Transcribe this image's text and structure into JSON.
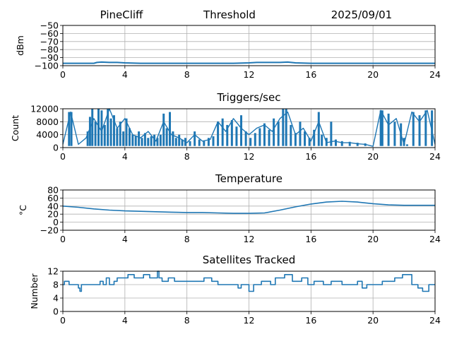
{
  "header": {
    "station": "PineCliff",
    "title": "Threshold",
    "date": "2025/09/01"
  },
  "colors": {
    "series": "#1f77b4",
    "grid": "#b0b0b0"
  },
  "chart_data": [
    {
      "type": "line",
      "title": "",
      "ylabel": "dBm",
      "xlim": [
        0,
        24
      ],
      "ylim": [
        -100,
        -50
      ],
      "xticks": [
        0,
        4,
        8,
        12,
        16,
        20,
        24
      ],
      "yticks": [
        -100,
        -90,
        -80,
        -70,
        -60,
        -50
      ],
      "ytick_labels": [
        "−100",
        "−90",
        "−80",
        "−70",
        "−60",
        "−50"
      ],
      "grid": true,
      "x": [
        0,
        1,
        2,
        2.2,
        2.5,
        3,
        3.5,
        4,
        5,
        6,
        7,
        8,
        9,
        10,
        11,
        12,
        12.5,
        13,
        14,
        14.5,
        15,
        16,
        17,
        18,
        19,
        20,
        21,
        22,
        23,
        24
      ],
      "y": [
        -97,
        -97,
        -97,
        -96,
        -95.5,
        -96,
        -96,
        -96.5,
        -97,
        -97,
        -97,
        -97,
        -97,
        -97,
        -97,
        -96.5,
        -96,
        -96,
        -96,
        -95.5,
        -96.5,
        -97,
        -97,
        -97,
        -97,
        -97,
        -97,
        -97,
        -97,
        -97
      ]
    },
    {
      "type": "line",
      "title": "Triggers/sec",
      "ylabel": "Count",
      "xlim": [
        0,
        24
      ],
      "ylim": [
        0,
        12000
      ],
      "xticks": [
        0,
        4,
        8,
        12,
        16,
        20,
        24
      ],
      "yticks": [
        0,
        4000,
        8000,
        12000
      ],
      "grid": true,
      "x": [
        0,
        0.5,
        1,
        1.5,
        2,
        2.5,
        3,
        3.5,
        4,
        4.5,
        5,
        5.5,
        6,
        6.5,
        7,
        7.5,
        8,
        8.5,
        9,
        9.5,
        10,
        10.5,
        11,
        11.5,
        12,
        12.5,
        13,
        13.5,
        14,
        14.5,
        15,
        15.5,
        16,
        16.5,
        17,
        17.5,
        18,
        18.5,
        19,
        19.5,
        20,
        20.5,
        21,
        21.5,
        22,
        22.5,
        23,
        23.5,
        24
      ],
      "y": [
        1000,
        11000,
        1000,
        3000,
        9000,
        5000,
        12000,
        6000,
        9000,
        4000,
        3000,
        5000,
        2000,
        8000,
        4000,
        3000,
        1500,
        4000,
        2000,
        2500,
        8000,
        5000,
        9000,
        6000,
        4000,
        6000,
        7000,
        5000,
        9000,
        11000,
        4000,
        6000,
        2000,
        8000,
        1500,
        2000,
        1500,
        1500,
        1200,
        1000,
        400,
        11500,
        7000,
        9000,
        1000,
        11000,
        8000,
        11500,
        1000
      ],
      "spikes": [
        [
          0.4,
          11000
        ],
        [
          0.55,
          11000
        ],
        [
          1.6,
          5000
        ],
        [
          1.75,
          9500
        ],
        [
          1.9,
          12000
        ],
        [
          2.1,
          8000
        ],
        [
          2.3,
          12000
        ],
        [
          2.5,
          11500
        ],
        [
          2.7,
          7000
        ],
        [
          2.9,
          12000
        ],
        [
          3.1,
          9000
        ],
        [
          3.3,
          10000
        ],
        [
          3.5,
          6000
        ],
        [
          3.7,
          8000
        ],
        [
          3.9,
          5000
        ],
        [
          4.1,
          9000
        ],
        [
          4.3,
          6000
        ],
        [
          4.5,
          4000
        ],
        [
          4.7,
          3500
        ],
        [
          4.9,
          5000
        ],
        [
          5.1,
          3000
        ],
        [
          5.3,
          4500
        ],
        [
          5.5,
          3000
        ],
        [
          5.7,
          3500
        ],
        [
          5.9,
          4000
        ],
        [
          6.1,
          3000
        ],
        [
          6.3,
          4000
        ],
        [
          6.5,
          10500
        ],
        [
          6.7,
          6000
        ],
        [
          6.9,
          11000
        ],
        [
          7.1,
          5000
        ],
        [
          7.3,
          3000
        ],
        [
          7.5,
          4000
        ],
        [
          7.7,
          2500
        ],
        [
          7.9,
          3000
        ],
        [
          8.2,
          2000
        ],
        [
          8.5,
          5000
        ],
        [
          8.8,
          2500
        ],
        [
          9.1,
          2000
        ],
        [
          9.4,
          3000
        ],
        [
          9.7,
          3500
        ],
        [
          10.0,
          8000
        ],
        [
          10.3,
          9000
        ],
        [
          10.6,
          7000
        ],
        [
          10.9,
          8500
        ],
        [
          11.2,
          6500
        ],
        [
          11.5,
          10000
        ],
        [
          11.8,
          5000
        ],
        [
          12.1,
          3000
        ],
        [
          12.4,
          4500
        ],
        [
          12.7,
          6000
        ],
        [
          13.0,
          7500
        ],
        [
          13.3,
          5500
        ],
        [
          13.6,
          9000
        ],
        [
          13.9,
          8000
        ],
        [
          14.2,
          12000
        ],
        [
          14.4,
          12000
        ],
        [
          14.7,
          7000
        ],
        [
          15.0,
          4500
        ],
        [
          15.3,
          8000
        ],
        [
          15.6,
          5000
        ],
        [
          15.9,
          3000
        ],
        [
          16.2,
          5500
        ],
        [
          16.5,
          11000
        ],
        [
          16.7,
          4000
        ],
        [
          17.0,
          3000
        ],
        [
          17.3,
          8000
        ],
        [
          17.6,
          2500
        ],
        [
          18.0,
          2000
        ],
        [
          18.5,
          1800
        ],
        [
          19.0,
          1500
        ],
        [
          19.5,
          1300
        ],
        [
          20.5,
          11500
        ],
        [
          20.6,
          11500
        ],
        [
          21.0,
          10500
        ],
        [
          21.4,
          8000
        ],
        [
          21.8,
          7500
        ],
        [
          22.0,
          3000
        ],
        [
          22.2,
          1000
        ],
        [
          22.6,
          11000
        ],
        [
          23.0,
          10000
        ],
        [
          23.4,
          11500
        ],
        [
          23.8,
          11500
        ]
      ]
    },
    {
      "type": "line",
      "title": "Temperature",
      "ylabel": "°C",
      "xlim": [
        0,
        24
      ],
      "ylim": [
        -20,
        80
      ],
      "xticks": [
        0,
        4,
        8,
        12,
        16,
        20,
        24
      ],
      "yticks": [
        -20,
        0,
        20,
        40,
        60,
        80
      ],
      "ytick_labels": [
        "−20",
        "0",
        "20",
        "40",
        "60",
        "80"
      ],
      "grid": true,
      "x": [
        0,
        1,
        2,
        3,
        4,
        5,
        6,
        7,
        8,
        9,
        10,
        11,
        12,
        13,
        14,
        15,
        16,
        17,
        18,
        19,
        20,
        21,
        22,
        23,
        24
      ],
      "y": [
        40,
        37,
        33,
        30,
        28,
        27,
        26,
        25,
        24,
        24,
        23,
        22,
        22,
        23,
        30,
        38,
        45,
        50,
        52,
        50,
        46,
        43,
        42,
        42,
        42
      ]
    },
    {
      "type": "line",
      "title": "Satellites Tracked",
      "ylabel": "Number",
      "xlim": [
        0,
        24
      ],
      "ylim": [
        0,
        12
      ],
      "xticks": [
        0,
        4,
        8,
        12,
        16,
        20,
        24
      ],
      "yticks": [
        0,
        4,
        8,
        12
      ],
      "grid": true,
      "step": true,
      "x": [
        0,
        0.1,
        0.4,
        1.0,
        1.1,
        1.2,
        1.6,
        2.4,
        2.6,
        2.8,
        3.0,
        3.3,
        3.5,
        3.9,
        4.2,
        4.6,
        5.2,
        5.6,
        6.1,
        6.2,
        6.4,
        6.8,
        7.2,
        8.0,
        8.5,
        9.1,
        9.6,
        10.0,
        10.6,
        11.3,
        11.5,
        12.0,
        12.3,
        12.8,
        13.4,
        13.7,
        14.3,
        14.8,
        15.4,
        15.8,
        16.2,
        16.8,
        17.3,
        18.0,
        18.6,
        19.0,
        19.3,
        19.6,
        20.0,
        20.6,
        21.4,
        21.9,
        22.5,
        22.9,
        23.2,
        23.6,
        24.0
      ],
      "y": [
        8,
        9,
        8,
        7,
        6,
        8,
        8,
        9,
        8,
        10,
        8,
        9,
        10,
        10,
        11,
        10,
        11,
        10,
        12,
        10,
        9,
        10,
        9,
        9,
        9,
        10,
        9,
        8,
        8,
        7,
        8,
        6,
        8,
        9,
        8,
        10,
        11,
        9,
        10,
        8,
        9,
        8,
        9,
        8,
        8,
        9,
        7,
        8,
        8,
        9,
        10,
        11,
        8,
        7,
        6,
        8,
        8
      ]
    }
  ]
}
